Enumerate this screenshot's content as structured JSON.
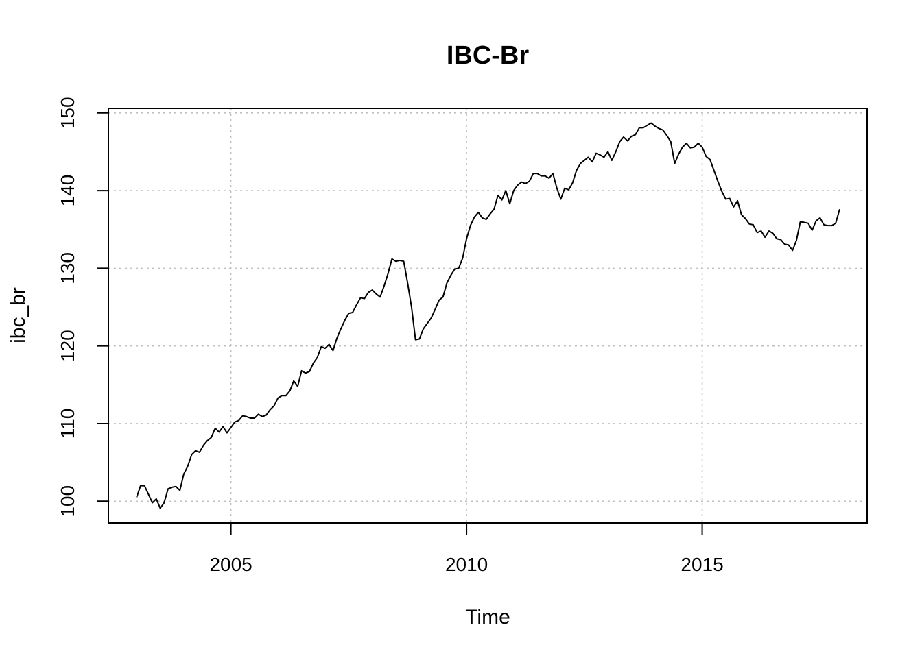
{
  "chart_data": {
    "type": "line",
    "title": "IBC-Br",
    "xlabel": "Time",
    "ylabel": "ibc_br",
    "x_ticks": [
      2005,
      2010,
      2015
    ],
    "y_ticks": [
      100,
      110,
      120,
      130,
      140,
      150
    ],
    "xlim": [
      2002.4,
      2018.5
    ],
    "ylim": [
      97.2,
      150.6
    ],
    "grid": true,
    "legend": "none",
    "line_color": "#000000",
    "grid_color": "#c0c0c0",
    "x": [
      2003.0,
      2003.083,
      2003.167,
      2003.25,
      2003.333,
      2003.417,
      2003.5,
      2003.583,
      2003.667,
      2003.75,
      2003.833,
      2003.917,
      2004.0,
      2004.083,
      2004.167,
      2004.25,
      2004.333,
      2004.417,
      2004.5,
      2004.583,
      2004.667,
      2004.75,
      2004.833,
      2004.917,
      2005.0,
      2005.083,
      2005.167,
      2005.25,
      2005.333,
      2005.417,
      2005.5,
      2005.583,
      2005.667,
      2005.75,
      2005.833,
      2005.917,
      2006.0,
      2006.083,
      2006.167,
      2006.25,
      2006.333,
      2006.417,
      2006.5,
      2006.583,
      2006.667,
      2006.75,
      2006.833,
      2006.917,
      2007.0,
      2007.083,
      2007.167,
      2007.25,
      2007.333,
      2007.417,
      2007.5,
      2007.583,
      2007.667,
      2007.75,
      2007.833,
      2007.917,
      2008.0,
      2008.083,
      2008.167,
      2008.25,
      2008.333,
      2008.417,
      2008.5,
      2008.583,
      2008.667,
      2008.75,
      2008.833,
      2008.917,
      2009.0,
      2009.083,
      2009.167,
      2009.25,
      2009.333,
      2009.417,
      2009.5,
      2009.583,
      2009.667,
      2009.75,
      2009.833,
      2009.917,
      2010.0,
      2010.083,
      2010.167,
      2010.25,
      2010.333,
      2010.417,
      2010.5,
      2010.583,
      2010.667,
      2010.75,
      2010.833,
      2010.917,
      2011.0,
      2011.083,
      2011.167,
      2011.25,
      2011.333,
      2011.417,
      2011.5,
      2011.583,
      2011.667,
      2011.75,
      2011.833,
      2011.917,
      2012.0,
      2012.083,
      2012.167,
      2012.25,
      2012.333,
      2012.417,
      2012.5,
      2012.583,
      2012.667,
      2012.75,
      2012.833,
      2012.917,
      2013.0,
      2013.083,
      2013.167,
      2013.25,
      2013.333,
      2013.417,
      2013.5,
      2013.583,
      2013.667,
      2013.75,
      2013.833,
      2013.917,
      2014.0,
      2014.083,
      2014.167,
      2014.25,
      2014.333,
      2014.417,
      2014.5,
      2014.583,
      2014.667,
      2014.75,
      2014.833,
      2014.917,
      2015.0,
      2015.083,
      2015.167,
      2015.25,
      2015.333,
      2015.417,
      2015.5,
      2015.583,
      2015.667,
      2015.75,
      2015.833,
      2015.917,
      2016.0,
      2016.083,
      2016.167,
      2016.25,
      2016.333,
      2016.417,
      2016.5,
      2016.583,
      2016.667,
      2016.75,
      2016.833,
      2016.917,
      2017.0,
      2017.083,
      2017.167,
      2017.25,
      2017.333,
      2017.417,
      2017.5,
      2017.583,
      2017.667,
      2017.75,
      2017.833,
      2017.917
    ],
    "series": [
      {
        "values": [
          100.5,
          102.0,
          102.0,
          100.9,
          99.8,
          100.3,
          99.1,
          99.8,
          101.6,
          101.8,
          101.9,
          101.4,
          103.5,
          104.5,
          106.0,
          106.5,
          106.3,
          107.2,
          107.8,
          108.2,
          109.4,
          108.9,
          109.6,
          108.8,
          109.5,
          110.2,
          110.4,
          111.0,
          110.9,
          110.7,
          110.7,
          111.2,
          110.9,
          111.1,
          111.8,
          112.3,
          113.3,
          113.6,
          113.6,
          114.2,
          115.5,
          114.8,
          116.8,
          116.5,
          116.7,
          117.8,
          118.5,
          119.9,
          119.7,
          120.2,
          119.4,
          121.0,
          122.2,
          123.3,
          124.2,
          124.3,
          125.3,
          126.2,
          126.1,
          126.9,
          127.2,
          126.7,
          126.3,
          127.7,
          129.3,
          131.2,
          130.9,
          131.0,
          130.9,
          128.1,
          125.0,
          120.8,
          120.9,
          122.2,
          122.9,
          123.6,
          124.7,
          125.9,
          126.3,
          128.1,
          129.1,
          129.9,
          130.0,
          131.3,
          133.8,
          135.5,
          136.6,
          137.2,
          136.5,
          136.3,
          137.0,
          137.6,
          139.4,
          138.8,
          140.0,
          138.3,
          140.0,
          140.7,
          141.1,
          140.9,
          141.2,
          142.2,
          142.2,
          141.9,
          141.9,
          141.6,
          142.2,
          140.3,
          138.9,
          140.3,
          140.1,
          141.0,
          142.6,
          143.5,
          143.9,
          144.3,
          143.7,
          144.8,
          144.6,
          144.3,
          145.0,
          143.9,
          145.0,
          146.3,
          146.9,
          146.4,
          147.0,
          147.2,
          148.1,
          148.1,
          148.4,
          148.7,
          148.3,
          148.0,
          147.8,
          147.1,
          146.3,
          143.5,
          144.7,
          145.6,
          146.1,
          145.5,
          145.6,
          146.1,
          145.6,
          144.4,
          144.0,
          142.6,
          141.2,
          139.9,
          138.9,
          139.0,
          137.9,
          138.7,
          136.9,
          136.4,
          135.7,
          135.6,
          134.6,
          134.8,
          134.0,
          134.8,
          134.5,
          133.8,
          133.7,
          133.1,
          133.0,
          132.3,
          133.6,
          136.0,
          135.9,
          135.8,
          134.9,
          136.1,
          136.5,
          135.6,
          135.5,
          135.5,
          135.8,
          137.6
        ]
      }
    ]
  }
}
